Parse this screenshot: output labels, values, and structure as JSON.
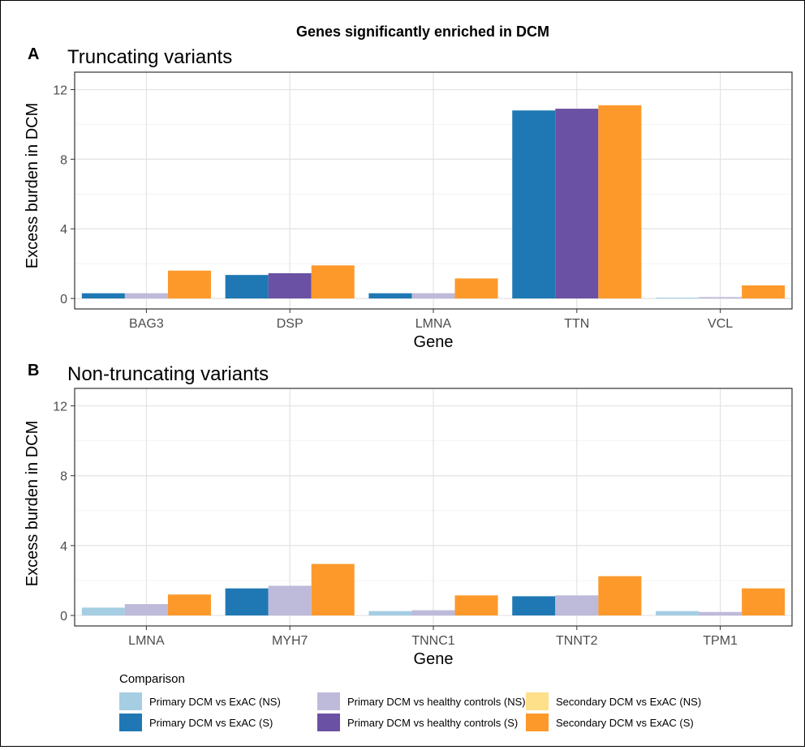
{
  "figure": {
    "title": "Genes significantly enriched in DCM"
  },
  "legend": {
    "title": "Comparison",
    "items": [
      {
        "label": "Primary DCM vs ExAC (NS)",
        "color": "#a6cee3"
      },
      {
        "label": "Primary DCM vs ExAC (S)",
        "color": "#1f78b4"
      },
      {
        "label": "Primary DCM vs healthy controls (NS)",
        "color": "#bebada"
      },
      {
        "label": "Primary DCM vs healthy controls (S)",
        "color": "#6a51a3"
      },
      {
        "label": "Secondary DCM vs ExAC (NS)",
        "color": "#fee08b"
      },
      {
        "label": "Secondary DCM vs ExAC (S)",
        "color": "#fd992b"
      }
    ]
  },
  "chart_data": [
    {
      "type": "bar",
      "panel_label": "A",
      "title": "Truncating variants",
      "xlabel": "Gene",
      "ylabel": "Excess burden in DCM",
      "ylim": [
        -0.6,
        13
      ],
      "yticks": [
        0,
        4,
        8,
        12
      ],
      "grid": true,
      "categories": [
        "BAG3",
        "DSP",
        "LMNA",
        "TTN",
        "VCL"
      ],
      "series": [
        {
          "name": "Primary DCM vs ExAC",
          "values": [
            0.3,
            1.35,
            0.3,
            10.8,
            0.05
          ],
          "colors": [
            "#1f78b4",
            "#1f78b4",
            "#1f78b4",
            "#1f78b4",
            "#a6cee3"
          ]
        },
        {
          "name": "Primary DCM vs healthy controls",
          "values": [
            0.3,
            1.45,
            0.3,
            10.9,
            0.08
          ],
          "colors": [
            "#bebada",
            "#6a51a3",
            "#bebada",
            "#6a51a3",
            "#bebada"
          ]
        },
        {
          "name": "Secondary DCM vs ExAC",
          "values": [
            1.6,
            1.9,
            1.15,
            11.1,
            0.75
          ],
          "colors": [
            "#fd992b",
            "#fd992b",
            "#fd992b",
            "#fd992b",
            "#fd992b"
          ]
        }
      ]
    },
    {
      "type": "bar",
      "panel_label": "B",
      "title": "Non-truncating variants",
      "xlabel": "Gene",
      "ylabel": "Excess burden in DCM",
      "ylim": [
        -0.6,
        13
      ],
      "yticks": [
        0,
        4,
        8,
        12
      ],
      "grid": true,
      "categories": [
        "LMNA",
        "MYH7",
        "TNNC1",
        "TNNT2",
        "TPM1"
      ],
      "series": [
        {
          "name": "Primary DCM vs ExAC",
          "values": [
            0.45,
            1.55,
            0.25,
            1.1,
            0.25
          ],
          "colors": [
            "#a6cee3",
            "#1f78b4",
            "#a6cee3",
            "#1f78b4",
            "#a6cee3"
          ]
        },
        {
          "name": "Primary DCM vs healthy controls",
          "values": [
            0.65,
            1.7,
            0.3,
            1.15,
            0.2
          ],
          "colors": [
            "#bebada",
            "#bebada",
            "#bebada",
            "#bebada",
            "#bebada"
          ]
        },
        {
          "name": "Secondary DCM vs ExAC",
          "values": [
            1.2,
            2.95,
            1.15,
            2.25,
            1.55
          ],
          "colors": [
            "#fd992b",
            "#fd992b",
            "#fd992b",
            "#fd992b",
            "#fd992b"
          ]
        }
      ]
    }
  ]
}
